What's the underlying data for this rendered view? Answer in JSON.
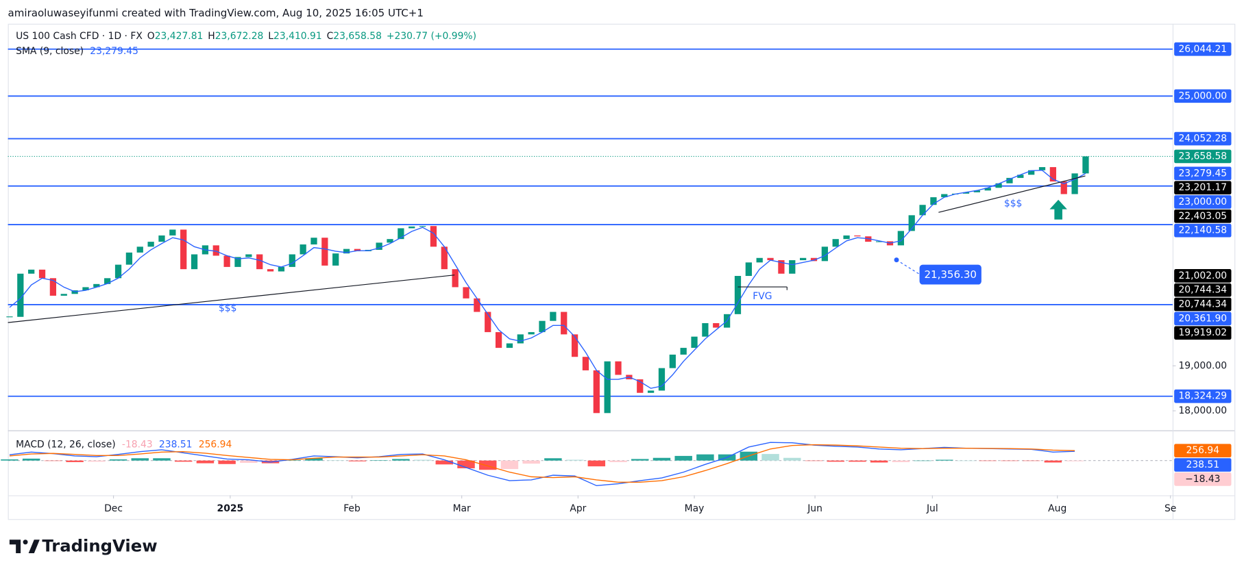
{
  "header": {
    "attribution": "amiraoluwaseyifunmi created with TradingView.com, Aug 10, 2025 16:05 UTC+1"
  },
  "chart_data": [
    {
      "type": "candlestick",
      "symbol": "US 100 Cash CFD · 1D · FX",
      "ohlc": [
        {
          "key": "O",
          "text": "23,427.81"
        },
        {
          "key": "H",
          "text": "23,672.28"
        },
        {
          "key": "L",
          "text": "23,410.91"
        },
        {
          "key": "C",
          "text": "23,658.58"
        }
      ],
      "change": "+230.77 (+0.99%)",
      "x": [
        0,
        1,
        2,
        3,
        4,
        5,
        6,
        7,
        8,
        9,
        10,
        11,
        12,
        13,
        14,
        15,
        16,
        17,
        18,
        19,
        20,
        21,
        22,
        23,
        24,
        25,
        26,
        27,
        28,
        29,
        30,
        31,
        32,
        33,
        34,
        35,
        36,
        37,
        38,
        39,
        40,
        41,
        42,
        43,
        44,
        45,
        46,
        47,
        48,
        49,
        50,
        51,
        52,
        53,
        54,
        55,
        56,
        57,
        58,
        59,
        60,
        61,
        62,
        63,
        64,
        65,
        66,
        67,
        68,
        69,
        70,
        71,
        72,
        73,
        74,
        75,
        76,
        77,
        78,
        79,
        80,
        81,
        82,
        83,
        84,
        85,
        86,
        87,
        88,
        89,
        90,
        91,
        92,
        93,
        94,
        95,
        96,
        97,
        98,
        99
      ],
      "xlim": [
        -0.15,
        107
      ],
      "xticks": [
        {
          "value": 9.56,
          "label": "Dec"
        },
        {
          "value": 20.3,
          "label": "2025"
        },
        {
          "value": 31.5,
          "label": "Feb"
        },
        {
          "value": 41.6,
          "label": "Mar"
        },
        {
          "value": 52.3,
          "label": "Apr"
        },
        {
          "value": 63,
          "label": "May"
        },
        {
          "value": 74.1,
          "label": "Jun"
        },
        {
          "value": 84.9,
          "label": "Jul"
        },
        {
          "value": 96.4,
          "label": "Aug"
        },
        {
          "value": 106.8,
          "label": "Se"
        }
      ],
      "ylim": [
        17566,
        26608
      ],
      "yticks": [
        {
          "value": 19000,
          "label": "19,000.00"
        },
        {
          "value": 18000,
          "label": "18,000.00"
        }
      ],
      "series": [
        {
          "up_color": "#089981",
          "down_color": "#f23645",
          "values": [
            20090,
            21050,
            21140,
            20950,
            20560,
            20600,
            20680,
            20750,
            20820,
            20950,
            21250,
            21520,
            21650,
            21760,
            21900,
            22030,
            21150,
            21480,
            21680,
            21450,
            21200,
            21420,
            21480,
            21150,
            21100,
            21200,
            21480,
            21700,
            21850,
            21230,
            21500,
            21600,
            21550,
            21580,
            21740,
            21820,
            22060,
            22100,
            22110,
            21650,
            21150,
            20750,
            20500,
            20200,
            19750,
            19400,
            19500,
            19700,
            19750,
            20000,
            20200,
            19700,
            19200,
            18900,
            17950,
            19100,
            18800,
            18700,
            18400,
            18450,
            18950,
            19250,
            19400,
            19650,
            19950,
            19850,
            20150,
            21000,
            21300,
            21400,
            21350,
            21050,
            21350,
            21400,
            21330,
            21650,
            21820,
            21900,
            21880,
            21760,
            21770,
            21680,
            22000,
            22350,
            22580,
            22750,
            22820,
            22830,
            22860,
            22900,
            22960,
            23060,
            23180,
            23250,
            23350,
            23420,
            23100,
            22820,
            23280,
            23658.58
          ]
        },
        {
          "name": "SMA (9, close)",
          "color": "#2962ff",
          "value_label": "23,279.45",
          "values": [
            20300,
            20500,
            20800,
            20950,
            20900,
            20750,
            20650,
            20680,
            20750,
            20830,
            20950,
            21150,
            21400,
            21580,
            21720,
            21850,
            21800,
            21650,
            21580,
            21550,
            21450,
            21380,
            21400,
            21350,
            21250,
            21200,
            21280,
            21450,
            21630,
            21600,
            21550,
            21520,
            21560,
            21560,
            21620,
            21720,
            21850,
            21990,
            22080,
            21950,
            21650,
            21250,
            20850,
            20500,
            20150,
            19800,
            19600,
            19550,
            19620,
            19750,
            19900,
            19900,
            19650,
            19300,
            18900,
            18700,
            18700,
            18750,
            18650,
            18500,
            18550,
            18800,
            19100,
            19350,
            19600,
            19800,
            20000,
            20400,
            20800,
            21150,
            21350,
            21300,
            21250,
            21300,
            21350,
            21450,
            21620,
            21780,
            21850,
            21830,
            21780,
            21730,
            21780,
            22050,
            22350,
            22600,
            22750,
            22820,
            22860,
            22900,
            22960,
            23050,
            23150,
            23250,
            23340,
            23350,
            23150,
            23050,
            23150,
            23279.45
          ]
        }
      ],
      "levels": {
        "color": "#2962ff",
        "lines": [
          {
            "value": 26044.21,
            "label": "26,044.21"
          },
          {
            "value": 25000,
            "label": "25,000.00"
          },
          {
            "value": 24052.28,
            "label": "24,052.28"
          },
          {
            "value": 23000,
            "label": "23,000.00"
          },
          {
            "value": 22140.58,
            "label": "22,140.58"
          },
          {
            "value": 20361.9,
            "label": "20,361.90"
          },
          {
            "value": 18324.29,
            "label": "18,324.29"
          }
        ]
      },
      "last_price": {
        "value": 23658.58,
        "label": "23,658.58",
        "color": "#089981"
      },
      "price_markers": {
        "color": "#000000",
        "items": [
          {
            "value": 23201.17,
            "label": "23,201.17"
          },
          {
            "value": 22403.05,
            "label": "22,403.05"
          },
          {
            "value": 21002,
            "label": "21,002.00"
          },
          {
            "value": 20744.34,
            "label": "20,744.34"
          },
          {
            "value": 20744.34,
            "label": "20,744.34"
          },
          {
            "value": 19919.02,
            "label": "19,919.02"
          }
        ]
      },
      "annotations": [
        {
          "text": "$$$"
        },
        {
          "text": "$$$"
        },
        {
          "text": "FVG"
        },
        {
          "text": "21,356.30",
          "value": 21356.3
        }
      ]
    },
    {
      "type": "macd",
      "title": "MACD (12, 26, close)",
      "x": [
        0,
        2,
        4,
        6,
        8,
        10,
        12,
        14,
        16,
        18,
        20,
        22,
        24,
        26,
        28,
        30,
        32,
        34,
        36,
        38,
        40,
        42,
        44,
        46,
        48,
        50,
        52,
        54,
        56,
        58,
        60,
        62,
        64,
        66,
        68,
        70,
        72,
        74,
        76,
        78,
        80,
        82,
        84,
        86,
        88,
        90,
        92,
        94,
        96,
        98
      ],
      "ylim": [
        -900,
        680
      ],
      "series": [
        {
          "name": "histogram",
          "color": "#26a69a",
          "value_label": "-18.43",
          "axis_label": "−18.43",
          "legend_color": "#f7a1b0",
          "badge_color": "#ffcdd2",
          "values": [
            30,
            50,
            -5,
            -40,
            -30,
            30,
            60,
            60,
            -30,
            -70,
            -90,
            -60,
            -70,
            10,
            60,
            10,
            -20,
            10,
            40,
            20,
            -100,
            -200,
            -240,
            -220,
            -80,
            60,
            20,
            -150,
            -40,
            40,
            70,
            120,
            160,
            160,
            230,
            170,
            70,
            -10,
            -30,
            -30,
            -50,
            -40,
            0,
            20,
            0,
            -5,
            -10,
            -10,
            -50,
            -18.43
          ]
        },
        {
          "name": "macd",
          "color": "#2962ff",
          "value_label": "238.51",
          "values": [
            150,
            220,
            180,
            120,
            100,
            160,
            230,
            280,
            200,
            120,
            40,
            20,
            -40,
            30,
            120,
            100,
            70,
            100,
            160,
            170,
            20,
            -180,
            -380,
            -520,
            -500,
            -380,
            -400,
            -650,
            -600,
            -520,
            -450,
            -300,
            -100,
            80,
            350,
            470,
            460,
            400,
            370,
            350,
            300,
            280,
            310,
            340,
            320,
            310,
            300,
            290,
            220,
            238.51
          ]
        },
        {
          "name": "signal",
          "color": "#ff6d00",
          "value_label": "256.94",
          "values": [
            120,
            170,
            185,
            160,
            130,
            130,
            170,
            220,
            230,
            190,
            130,
            80,
            30,
            20,
            60,
            90,
            90,
            90,
            120,
            150,
            120,
            20,
            -140,
            -300,
            -420,
            -440,
            -420,
            -500,
            -560,
            -560,
            -520,
            -420,
            -260,
            -80,
            120,
            300,
            390,
            410,
            400,
            380,
            350,
            320,
            310,
            320,
            320,
            315,
            310,
            300,
            270,
            256.94
          ]
        }
      ]
    }
  ],
  "footer": {
    "logo": "TradingView"
  }
}
